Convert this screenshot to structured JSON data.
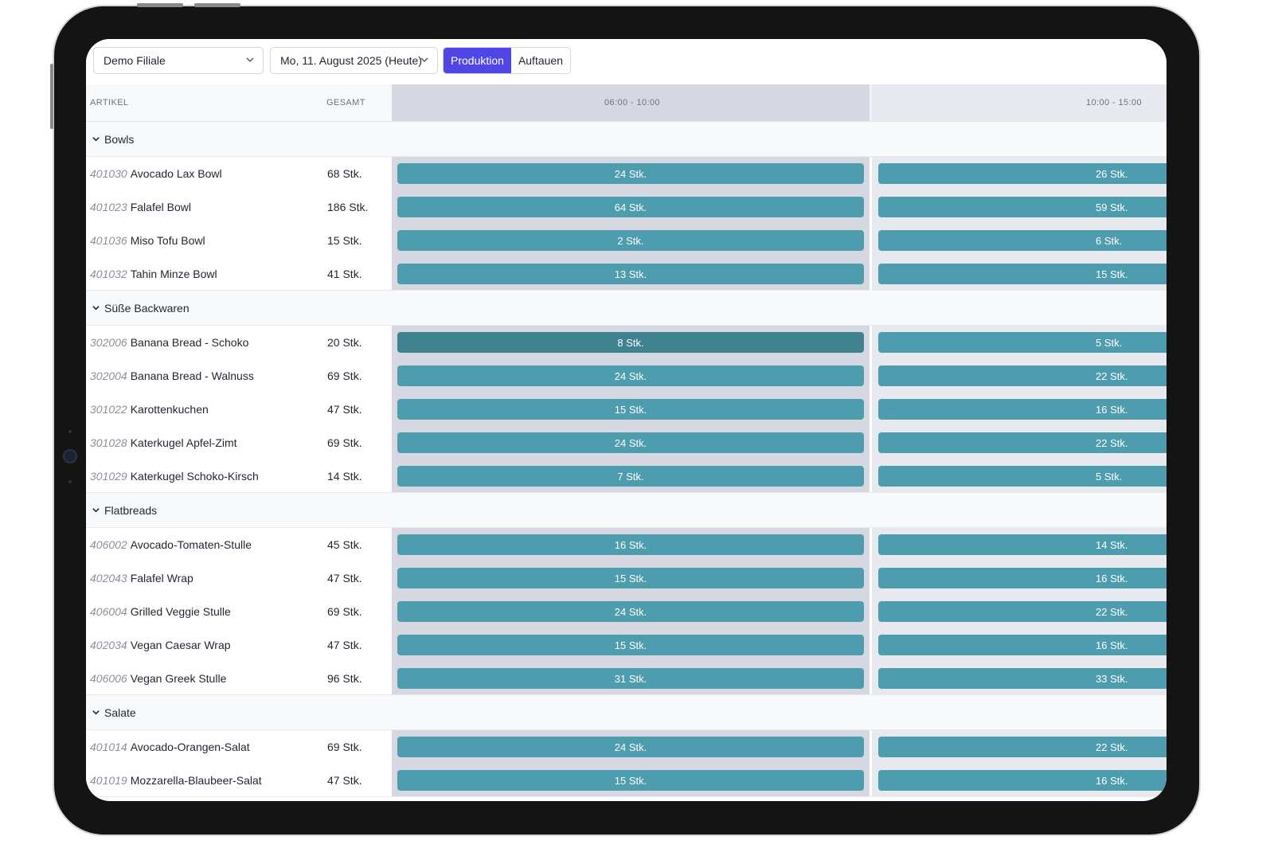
{
  "toolbar": {
    "branch": "Demo Filiale",
    "date": "Mo, 11. August 2025 (Heute)",
    "tabs": [
      {
        "label": "Produktion",
        "active": true
      },
      {
        "label": "Auftauen",
        "active": false
      }
    ]
  },
  "columns": {
    "article": "ARTIKEL",
    "total": "GESAMT",
    "slot1": "06:00 - 10:00",
    "slot2": "10:00 - 15:00"
  },
  "colors": {
    "accent": "#4f46e5",
    "bar": "#4e9dae",
    "bar_selected": "#3f8391"
  },
  "categories": [
    {
      "name": "Bowls",
      "items": [
        {
          "code": "401030",
          "name": "Avocado Lax Bowl",
          "total": "68 Stk.",
          "slot1": "24 Stk.",
          "slot2": "26 Stk."
        },
        {
          "code": "401023",
          "name": "Falafel Bowl",
          "total": "186 Stk.",
          "slot1": "64 Stk.",
          "slot2": "59 Stk."
        },
        {
          "code": "401036",
          "name": "Miso Tofu Bowl",
          "total": "15 Stk.",
          "slot1": "2 Stk.",
          "slot2": "6 Stk."
        },
        {
          "code": "401032",
          "name": "Tahin Minze Bowl",
          "total": "41 Stk.",
          "slot1": "13 Stk.",
          "slot2": "15 Stk."
        }
      ]
    },
    {
      "name": "Süße Backwaren",
      "items": [
        {
          "code": "302006",
          "name": "Banana Bread - Schoko",
          "total": "20 Stk.",
          "slot1": "8 Stk.",
          "slot2": "5 Stk.",
          "selected": true
        },
        {
          "code": "302004",
          "name": "Banana Bread - Walnuss",
          "total": "69 Stk.",
          "slot1": "24 Stk.",
          "slot2": "22 Stk."
        },
        {
          "code": "301022",
          "name": "Karottenkuchen",
          "total": "47 Stk.",
          "slot1": "15 Stk.",
          "slot2": "16 Stk."
        },
        {
          "code": "301028",
          "name": "Katerkugel Apfel-Zimt",
          "total": "69 Stk.",
          "slot1": "24 Stk.",
          "slot2": "22 Stk."
        },
        {
          "code": "301029",
          "name": "Katerkugel Schoko-Kirsch",
          "total": "14 Stk.",
          "slot1": "7 Stk.",
          "slot2": "5 Stk."
        }
      ]
    },
    {
      "name": "Flatbreads",
      "items": [
        {
          "code": "406002",
          "name": "Avocado-Tomaten-Stulle",
          "total": "45 Stk.",
          "slot1": "16 Stk.",
          "slot2": "14 Stk."
        },
        {
          "code": "402043",
          "name": "Falafel Wrap",
          "total": "47 Stk.",
          "slot1": "15 Stk.",
          "slot2": "16 Stk."
        },
        {
          "code": "406004",
          "name": "Grilled Veggie Stulle",
          "total": "69 Stk.",
          "slot1": "24 Stk.",
          "slot2": "22 Stk."
        },
        {
          "code": "402034",
          "name": "Vegan Caesar Wrap",
          "total": "47 Stk.",
          "slot1": "15 Stk.",
          "slot2": "16 Stk."
        },
        {
          "code": "406006",
          "name": "Vegan Greek Stulle",
          "total": "96 Stk.",
          "slot1": "31 Stk.",
          "slot2": "33 Stk."
        }
      ]
    },
    {
      "name": "Salate",
      "items": [
        {
          "code": "401014",
          "name": "Avocado-Orangen-Salat",
          "total": "69 Stk.",
          "slot1": "24 Stk.",
          "slot2": "22 Stk."
        },
        {
          "code": "401019",
          "name": "Mozzarella-Blaubeer-Salat",
          "total": "47 Stk.",
          "slot1": "15 Stk.",
          "slot2": "16 Stk."
        }
      ]
    }
  ]
}
